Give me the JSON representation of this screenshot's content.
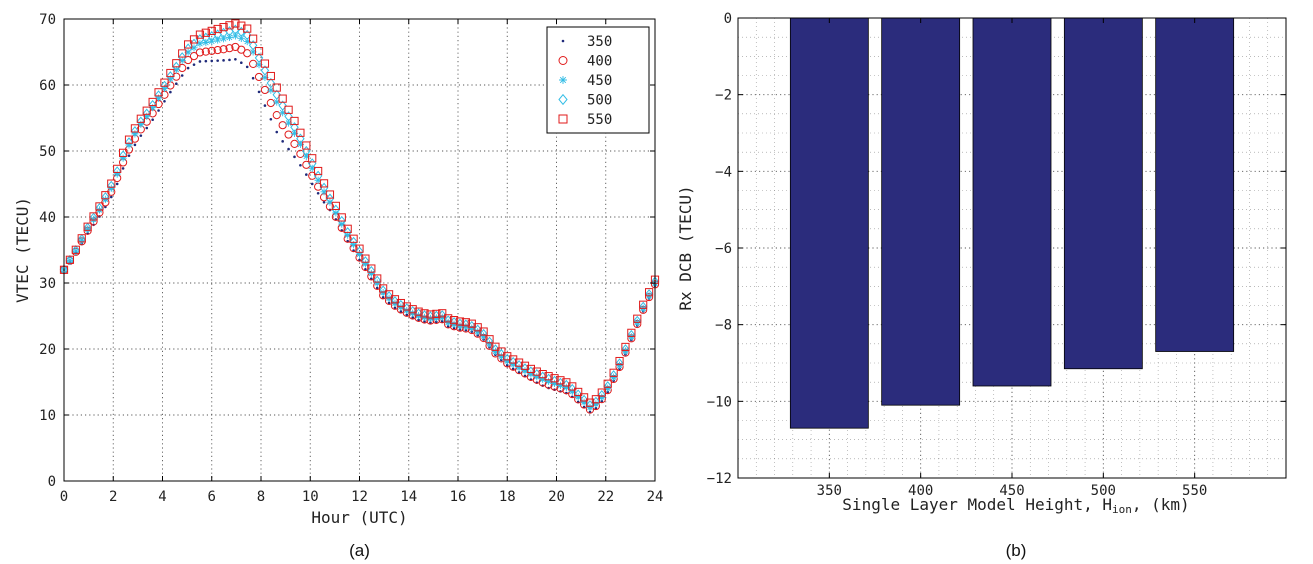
{
  "chart_data": [
    {
      "type": "scatter",
      "panel": "(a)",
      "xlabel": "Hour (UTC)",
      "ylabel": "VTEC (TECU)",
      "xlim": [
        0,
        24
      ],
      "ylim": [
        0,
        70
      ],
      "xticks": [
        0,
        2,
        4,
        6,
        8,
        10,
        12,
        14,
        16,
        18,
        20,
        22,
        24
      ],
      "yticks": [
        0,
        10,
        20,
        30,
        40,
        50,
        60,
        70
      ],
      "grid": true,
      "legend_position": "top-right",
      "keypoints": [
        [
          0,
          32
        ],
        [
          0.5,
          35
        ],
        [
          1,
          38.5
        ],
        [
          1.5,
          41.5
        ],
        [
          2,
          45
        ],
        [
          2.5,
          50
        ],
        [
          3,
          53.5
        ],
        [
          3.5,
          56
        ],
        [
          4,
          59
        ],
        [
          4.5,
          62
        ],
        [
          5,
          65
        ],
        [
          5.5,
          66.5
        ],
        [
          6,
          67
        ],
        [
          6.5,
          67.5
        ],
        [
          7,
          68
        ],
        [
          7.5,
          67
        ],
        [
          8,
          63
        ],
        [
          8.5,
          59
        ],
        [
          9,
          55.5
        ],
        [
          9.5,
          52
        ],
        [
          10,
          48
        ],
        [
          10.5,
          44
        ],
        [
          11,
          40.5
        ],
        [
          11.5,
          37
        ],
        [
          12,
          34
        ],
        [
          12.5,
          31
        ],
        [
          13,
          28
        ],
        [
          13.5,
          26.5
        ],
        [
          14,
          25.5
        ],
        [
          14.5,
          24.8
        ],
        [
          15,
          24.5
        ],
        [
          15.3,
          25
        ],
        [
          15.6,
          24
        ],
        [
          16,
          23.5
        ],
        [
          16.5,
          23.2
        ],
        [
          17,
          22
        ],
        [
          17.5,
          19.5
        ],
        [
          18,
          18
        ],
        [
          18.5,
          17
        ],
        [
          19,
          16
        ],
        [
          19.5,
          15.2
        ],
        [
          20,
          14.6
        ],
        [
          20.5,
          14
        ],
        [
          21,
          12.3
        ],
        [
          21.4,
          11
        ],
        [
          21.7,
          12
        ],
        [
          22,
          13.5
        ],
        [
          22.5,
          17
        ],
        [
          23,
          21.5
        ],
        [
          23.5,
          26
        ],
        [
          24,
          30
        ]
      ],
      "series": [
        {
          "name": "350",
          "marker": "dot",
          "color": "#1f2a7a",
          "offset": [
            0,
            -1.6,
            -2.0,
            -3.8,
            -5.2,
            -0.6,
            -0.4,
            -0.6,
            -0.3,
            -0.9,
            -0.6,
            -0.4
          ]
        },
        {
          "name": "400",
          "marker": "circle",
          "color": "#e01a1a",
          "offset": [
            0,
            -0.7,
            -1.0,
            -2.1,
            -2.6,
            -0.2,
            -0.1,
            -0.3,
            -0.1,
            -0.4,
            -0.3,
            -0.2
          ]
        },
        {
          "name": "450",
          "marker": "asterisk",
          "color": "#33bde6",
          "offset": [
            0,
            -0.1,
            0,
            -0.5,
            -0.6,
            0.4,
            0.3,
            0,
            0.2,
            0.1,
            0,
            0
          ]
        },
        {
          "name": "500",
          "marker": "diamond",
          "color": "#33bde6",
          "offset": [
            0,
            0.3,
            0.4,
            0.4,
            0.5,
            0.9,
            0.6,
            0.3,
            0.5,
            0.5,
            0.3,
            0.2
          ]
        },
        {
          "name": "550",
          "marker": "square",
          "color": "#e01a1a",
          "offset": [
            0,
            0.7,
            0.9,
            1.3,
            1.6,
            1.5,
            0.9,
            0.6,
            0.9,
            0.9,
            0.7,
            0.5
          ]
        }
      ]
    },
    {
      "type": "bar",
      "panel": "(b)",
      "xlabel_pre": "Single Layer Model Height, H",
      "xlabel_sub": "ion",
      "xlabel_post": ", (km)",
      "ylabel": "Rx DCB (TECU)",
      "categories": [
        "350",
        "400",
        "450",
        "500",
        "550"
      ],
      "values": [
        -10.7,
        -10.1,
        -9.6,
        -9.15,
        -8.7
      ],
      "ylim": [
        -12,
        0
      ],
      "yticks": [
        -12,
        -10,
        -8,
        -6,
        -4,
        -2,
        0
      ],
      "xlim": [
        300,
        600
      ],
      "bar_color": "#2b2c7c",
      "grid": true
    }
  ]
}
